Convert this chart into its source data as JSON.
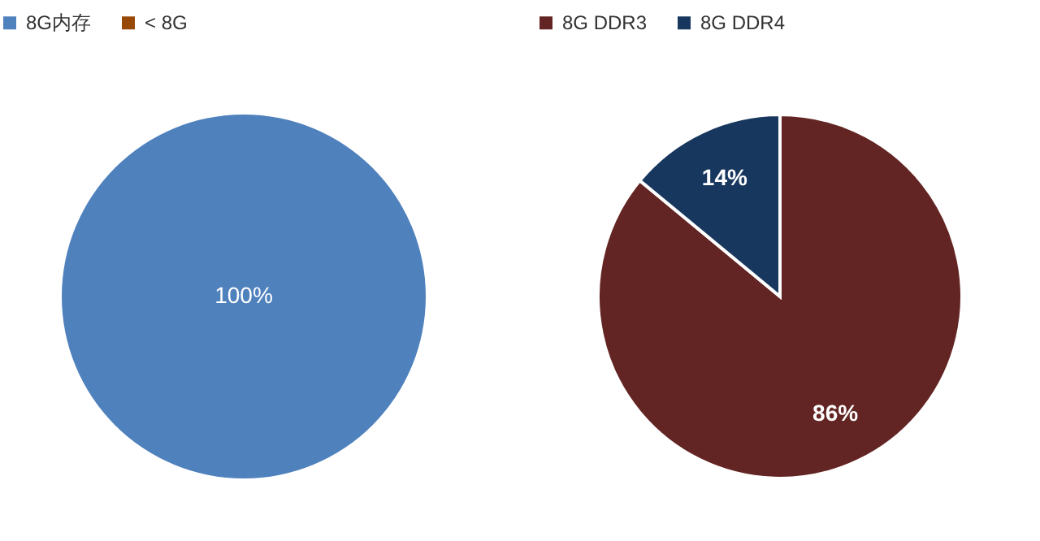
{
  "chart_data": [
    {
      "type": "pie",
      "categories": [
        "8G内存",
        "< 8G"
      ],
      "values": [
        100,
        0
      ],
      "colors": [
        "#4f81bd",
        "#984807"
      ],
      "value_labels": [
        "100%",
        null
      ],
      "legend": "top"
    },
    {
      "type": "pie",
      "categories": [
        "8G DDR3",
        "8G DDR4"
      ],
      "values": [
        86,
        14
      ],
      "colors": [
        "#632523",
        "#17375e"
      ],
      "value_labels": [
        "86%",
        "14%"
      ],
      "legend": "top"
    }
  ]
}
